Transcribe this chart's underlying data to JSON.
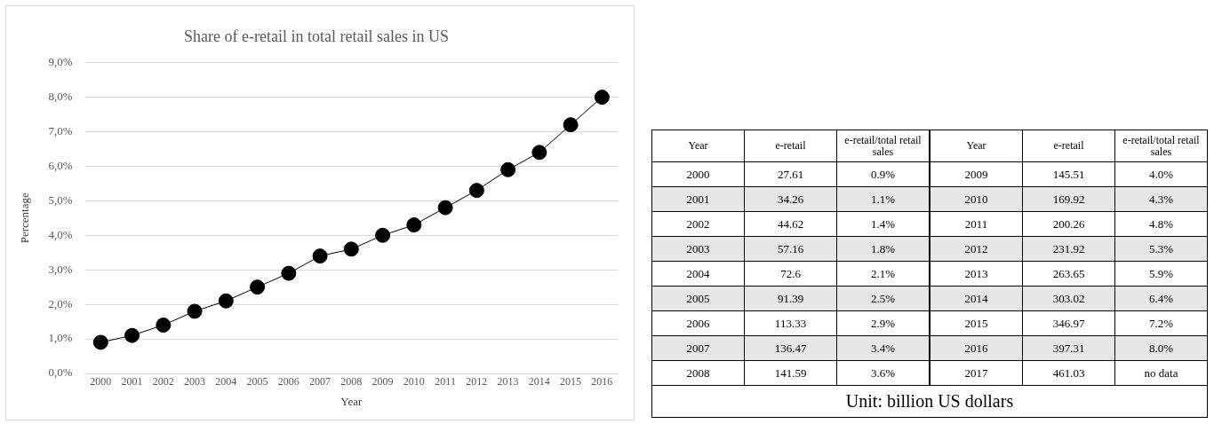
{
  "chart_data": [
    {
      "type": "line",
      "title": "Share of e-retail in total retail sales in US",
      "xlabel": "Year",
      "ylabel": "Percentage",
      "categories": [
        "2000",
        "2001",
        "2002",
        "2003",
        "2004",
        "2005",
        "2006",
        "2007",
        "2008",
        "2009",
        "2010",
        "2011",
        "2012",
        "2013",
        "2014",
        "2015",
        "2016"
      ],
      "series": [
        {
          "color": "#000000",
          "values": [
            0.9,
            1.1,
            1.4,
            1.8,
            2.1,
            2.5,
            2.9,
            3.4,
            3.6,
            4.0,
            4.3,
            4.8,
            5.3,
            5.9,
            6.4,
            7.2,
            8.0
          ]
        }
      ],
      "ylim": [
        0,
        9
      ],
      "yticks": [
        {
          "value": 0,
          "label": "0,0%"
        },
        {
          "value": 1,
          "label": "1,0%"
        },
        {
          "value": 2,
          "label": "2,0%"
        },
        {
          "value": 3,
          "label": "3,0%"
        },
        {
          "value": 4,
          "label": "4,0%"
        },
        {
          "value": 5,
          "label": "5,0%"
        },
        {
          "value": 6,
          "label": "6,0%"
        },
        {
          "value": 7,
          "label": "7,0%"
        },
        {
          "value": 8,
          "label": "8,0%"
        },
        {
          "value": 9,
          "label": "9,0%"
        }
      ],
      "grid": "y",
      "legend": false,
      "marker": "circle",
      "line_style": "solid"
    },
    {
      "type": "heatmap",
      "ylabel": "Year",
      "categories": [
        "e-retail",
        "e-retail/total retail sales"
      ],
      "y_categories": [
        "2000",
        "2001",
        "2002",
        "2003",
        "2004",
        "2005",
        "2006",
        "2007",
        "2008"
      ],
      "cells": [
        [
          27.61,
          0.9
        ],
        [
          34.26,
          1.1
        ],
        [
          44.62,
          1.4
        ],
        [
          57.16,
          1.8
        ],
        [
          72.6,
          2.1
        ],
        [
          91.39,
          2.5
        ],
        [
          113.33,
          2.9
        ],
        [
          136.47,
          3.4
        ],
        [
          141.59,
          3.6
        ]
      ],
      "cell_labels": [
        [
          "27.61",
          "0.9%"
        ],
        [
          "34.26",
          "1.1%"
        ],
        [
          "44.62",
          "1.4%"
        ],
        [
          "57.16",
          "1.8%"
        ],
        [
          "72.6",
          "2.1%"
        ],
        [
          "91.39",
          "2.5%"
        ],
        [
          "113.33",
          "2.9%"
        ],
        [
          "136.47",
          "3.4%"
        ],
        [
          "141.59",
          "3.6%"
        ]
      ]
    },
    {
      "type": "heatmap",
      "ylabel": "Year",
      "categories": [
        "e-retail",
        "e-retail/total retail sales"
      ],
      "y_categories": [
        "2009",
        "2010",
        "2011",
        "2012",
        "2013",
        "2014",
        "2015",
        "2016",
        "2017"
      ],
      "cells": [
        [
          145.51,
          4.0
        ],
        [
          169.92,
          4.3
        ],
        [
          200.26,
          4.8
        ],
        [
          231.92,
          5.3
        ],
        [
          263.65,
          5.9
        ],
        [
          303.02,
          6.4
        ],
        [
          346.97,
          7.2
        ],
        [
          397.31,
          8.0
        ],
        [
          461.03,
          null
        ]
      ],
      "cell_labels": [
        [
          "145.51",
          "4.0%"
        ],
        [
          "169.92",
          "4.3%"
        ],
        [
          "200.26",
          "4.8%"
        ],
        [
          "231.92",
          "5.3%"
        ],
        [
          "263.65",
          "5.9%"
        ],
        [
          "303.02",
          "6.4%"
        ],
        [
          "346.97",
          "7.2%"
        ],
        [
          "397.31",
          "8.0%"
        ],
        [
          "461.03",
          "no data"
        ]
      ],
      "annotations": [
        "Unit: billion US dollars"
      ]
    }
  ]
}
